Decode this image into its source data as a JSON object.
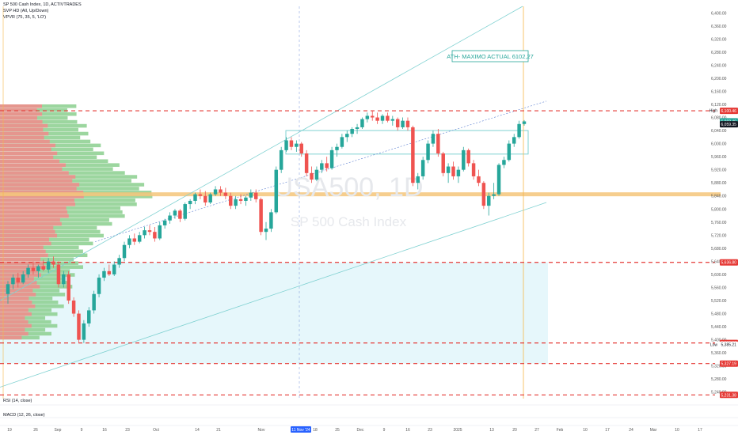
{
  "header": {
    "symbol_line": "SP 500 Cash Index, 1D, ACTIVTRADES",
    "indicator1": "SVP HD (All, Up/Down)",
    "indicator2": "VPVR (75, 35, 5, 'LO')"
  },
  "watermark": {
    "ticker": "USA500, 1D",
    "name": "SP 500 Cash Index"
  },
  "annotation": {
    "text": "ATH- MAXIMO ACTUAL 6102,27"
  },
  "panes": {
    "rsi": "RSI (14, close)",
    "macd": "MACD (12, 26, close)"
  },
  "colors": {
    "up": "#26a69a",
    "down": "#ef5350",
    "dash": "#e53935",
    "channel": "#7fd1d1",
    "poc": "#f5c57a",
    "zone": "#e6f7fb",
    "profile_up": "#8bcf8e",
    "profile_down": "#f28b8b"
  },
  "chart_data": {
    "type": "candlestick",
    "ylim": [
      5220,
      6420
    ],
    "y_ticks": [
      "6,400.00",
      "6,360.00",
      "6,320.00",
      "6,280.00",
      "6,240.00",
      "6,200.00",
      "6,160.00",
      "6,120.00",
      "6,080.00",
      "6,040.00",
      "6,000.00",
      "5,960.00",
      "5,920.00",
      "5,880.00",
      "5,840.00",
      "5,800.00",
      "5,760.00",
      "5,720.00",
      "5,680.00",
      "5,640.00",
      "5,600.00",
      "5,560.00",
      "5,520.00",
      "5,480.00",
      "5,440.00",
      "5,400.00",
      "5,360.00",
      "5,320.00",
      "5,280.00",
      "5,240.00"
    ],
    "x_ticks": [
      "19",
      "26",
      "Sep",
      "9",
      "16",
      "23",
      "Oct",
      "14",
      "21",
      "Nov",
      "11 Nov '24",
      "18",
      "25",
      "Dec",
      "9",
      "16",
      "23",
      "2025",
      "13",
      "20",
      "27",
      "Feb",
      "10",
      "17",
      "24",
      "Mar",
      "10",
      "17"
    ],
    "price_labels": [
      {
        "label": "High",
        "value": "6,102.27"
      },
      {
        "label": "",
        "value": "6,100.46"
      },
      {
        "label": "",
        "value": "6,068.40"
      },
      {
        "label": "",
        "value": "6,059.35"
      },
      {
        "label": "",
        "value": "5,636.80"
      },
      {
        "label": "",
        "value": "5,390.26"
      },
      {
        "label": "Low",
        "value": "5,385.21"
      },
      {
        "label": "",
        "value": "5,327.19"
      },
      {
        "label": "",
        "value": "5,231.38"
      }
    ],
    "resistance_levels": [
      6100.46,
      5636.8,
      5390.26,
      5327.19,
      5231.38
    ],
    "poc_level": 5845,
    "range_box": [
      5968,
      6040
    ],
    "candles": [
      {
        "o": 5540,
        "h": 5580,
        "l": 5510,
        "c": 5570
      },
      {
        "o": 5570,
        "h": 5600,
        "l": 5555,
        "c": 5590
      },
      {
        "o": 5590,
        "h": 5605,
        "l": 5560,
        "c": 5575
      },
      {
        "o": 5575,
        "h": 5610,
        "l": 5570,
        "c": 5600
      },
      {
        "o": 5600,
        "h": 5630,
        "l": 5590,
        "c": 5620
      },
      {
        "o": 5620,
        "h": 5640,
        "l": 5600,
        "c": 5610
      },
      {
        "o": 5610,
        "h": 5630,
        "l": 5590,
        "c": 5625
      },
      {
        "o": 5625,
        "h": 5645,
        "l": 5610,
        "c": 5615
      },
      {
        "o": 5615,
        "h": 5650,
        "l": 5605,
        "c": 5640
      },
      {
        "o": 5640,
        "h": 5655,
        "l": 5620,
        "c": 5630
      },
      {
        "o": 5630,
        "h": 5640,
        "l": 5560,
        "c": 5570
      },
      {
        "o": 5570,
        "h": 5610,
        "l": 5560,
        "c": 5600
      },
      {
        "o": 5600,
        "h": 5610,
        "l": 5510,
        "c": 5520
      },
      {
        "o": 5520,
        "h": 5530,
        "l": 5470,
        "c": 5480
      },
      {
        "o": 5480,
        "h": 5490,
        "l": 5390,
        "c": 5400
      },
      {
        "o": 5400,
        "h": 5460,
        "l": 5390,
        "c": 5450
      },
      {
        "o": 5450,
        "h": 5500,
        "l": 5440,
        "c": 5490
      },
      {
        "o": 5490,
        "h": 5550,
        "l": 5480,
        "c": 5540
      },
      {
        "o": 5540,
        "h": 5600,
        "l": 5530,
        "c": 5590
      },
      {
        "o": 5590,
        "h": 5620,
        "l": 5580,
        "c": 5610
      },
      {
        "o": 5610,
        "h": 5630,
        "l": 5595,
        "c": 5600
      },
      {
        "o": 5600,
        "h": 5640,
        "l": 5595,
        "c": 5630
      },
      {
        "o": 5630,
        "h": 5660,
        "l": 5620,
        "c": 5650
      },
      {
        "o": 5650,
        "h": 5700,
        "l": 5640,
        "c": 5690
      },
      {
        "o": 5690,
        "h": 5720,
        "l": 5680,
        "c": 5710
      },
      {
        "o": 5710,
        "h": 5725,
        "l": 5690,
        "c": 5700
      },
      {
        "o": 5700,
        "h": 5730,
        "l": 5695,
        "c": 5720
      },
      {
        "o": 5720,
        "h": 5745,
        "l": 5710,
        "c": 5735
      },
      {
        "o": 5735,
        "h": 5750,
        "l": 5720,
        "c": 5730
      },
      {
        "o": 5730,
        "h": 5745,
        "l": 5700,
        "c": 5710
      },
      {
        "o": 5710,
        "h": 5760,
        "l": 5705,
        "c": 5750
      },
      {
        "o": 5750,
        "h": 5770,
        "l": 5740,
        "c": 5765
      },
      {
        "o": 5765,
        "h": 5790,
        "l": 5755,
        "c": 5780
      },
      {
        "o": 5780,
        "h": 5800,
        "l": 5770,
        "c": 5795
      },
      {
        "o": 5795,
        "h": 5800,
        "l": 5760,
        "c": 5770
      },
      {
        "o": 5770,
        "h": 5820,
        "l": 5765,
        "c": 5815
      },
      {
        "o": 5815,
        "h": 5830,
        "l": 5800,
        "c": 5825
      },
      {
        "o": 5825,
        "h": 5850,
        "l": 5815,
        "c": 5845
      },
      {
        "o": 5845,
        "h": 5860,
        "l": 5830,
        "c": 5840
      },
      {
        "o": 5840,
        "h": 5855,
        "l": 5810,
        "c": 5820
      },
      {
        "o": 5820,
        "h": 5850,
        "l": 5815,
        "c": 5845
      },
      {
        "o": 5845,
        "h": 5870,
        "l": 5840,
        "c": 5860
      },
      {
        "o": 5860,
        "h": 5870,
        "l": 5840,
        "c": 5850
      },
      {
        "o": 5850,
        "h": 5865,
        "l": 5830,
        "c": 5840
      },
      {
        "o": 5840,
        "h": 5850,
        "l": 5800,
        "c": 5810
      },
      {
        "o": 5810,
        "h": 5840,
        "l": 5800,
        "c": 5830
      },
      {
        "o": 5830,
        "h": 5845,
        "l": 5815,
        "c": 5825
      },
      {
        "o": 5825,
        "h": 5840,
        "l": 5810,
        "c": 5835
      },
      {
        "o": 5835,
        "h": 5860,
        "l": 5825,
        "c": 5850
      },
      {
        "o": 5850,
        "h": 5860,
        "l": 5820,
        "c": 5830
      },
      {
        "o": 5830,
        "h": 5835,
        "l": 5720,
        "c": 5730
      },
      {
        "o": 5730,
        "h": 5760,
        "l": 5705,
        "c": 5740
      },
      {
        "o": 5740,
        "h": 5800,
        "l": 5730,
        "c": 5790
      },
      {
        "o": 5790,
        "h": 5930,
        "l": 5785,
        "c": 5920
      },
      {
        "o": 5920,
        "h": 5990,
        "l": 5910,
        "c": 5980
      },
      {
        "o": 5980,
        "h": 6020,
        "l": 5975,
        "c": 6010
      },
      {
        "o": 6010,
        "h": 6020,
        "l": 5980,
        "c": 5990
      },
      {
        "o": 5990,
        "h": 6010,
        "l": 5975,
        "c": 6000
      },
      {
        "o": 6000,
        "h": 6005,
        "l": 5960,
        "c": 5970
      },
      {
        "o": 5970,
        "h": 5980,
        "l": 5900,
        "c": 5910
      },
      {
        "o": 5910,
        "h": 5930,
        "l": 5880,
        "c": 5890
      },
      {
        "o": 5890,
        "h": 5930,
        "l": 5885,
        "c": 5920
      },
      {
        "o": 5920,
        "h": 5950,
        "l": 5910,
        "c": 5940
      },
      {
        "o": 5940,
        "h": 5960,
        "l": 5915,
        "c": 5925
      },
      {
        "o": 5925,
        "h": 5990,
        "l": 5920,
        "c": 5980
      },
      {
        "o": 5980,
        "h": 6000,
        "l": 5960,
        "c": 5990
      },
      {
        "o": 5990,
        "h": 6030,
        "l": 5985,
        "c": 6020
      },
      {
        "o": 6020,
        "h": 6040,
        "l": 6005,
        "c": 6030
      },
      {
        "o": 6030,
        "h": 6050,
        "l": 6020,
        "c": 6045
      },
      {
        "o": 6045,
        "h": 6060,
        "l": 6030,
        "c": 6050
      },
      {
        "o": 6050,
        "h": 6080,
        "l": 6045,
        "c": 6075
      },
      {
        "o": 6075,
        "h": 6095,
        "l": 6065,
        "c": 6085
      },
      {
        "o": 6085,
        "h": 6100,
        "l": 6070,
        "c": 6080
      },
      {
        "o": 6080,
        "h": 6095,
        "l": 6060,
        "c": 6070
      },
      {
        "o": 6070,
        "h": 6090,
        "l": 6060,
        "c": 6085
      },
      {
        "o": 6085,
        "h": 6095,
        "l": 6065,
        "c": 6070
      },
      {
        "o": 6070,
        "h": 6085,
        "l": 6055,
        "c": 6075
      },
      {
        "o": 6075,
        "h": 6080,
        "l": 6040,
        "c": 6050
      },
      {
        "o": 6050,
        "h": 6080,
        "l": 6045,
        "c": 6070
      },
      {
        "o": 6070,
        "h": 6080,
        "l": 6040,
        "c": 6050
      },
      {
        "o": 6050,
        "h": 6055,
        "l": 5870,
        "c": 5880
      },
      {
        "o": 5880,
        "h": 5910,
        "l": 5860,
        "c": 5900
      },
      {
        "o": 5900,
        "h": 5960,
        "l": 5890,
        "c": 5950
      },
      {
        "o": 5950,
        "h": 6010,
        "l": 5940,
        "c": 6000
      },
      {
        "o": 6000,
        "h": 6040,
        "l": 5990,
        "c": 6030
      },
      {
        "o": 6030,
        "h": 6045,
        "l": 5960,
        "c": 5970
      },
      {
        "o": 5970,
        "h": 5975,
        "l": 5900,
        "c": 5910
      },
      {
        "o": 5910,
        "h": 5940,
        "l": 5880,
        "c": 5930
      },
      {
        "o": 5930,
        "h": 5945,
        "l": 5890,
        "c": 5900
      },
      {
        "o": 5900,
        "h": 5930,
        "l": 5880,
        "c": 5920
      },
      {
        "o": 5920,
        "h": 5990,
        "l": 5915,
        "c": 5980
      },
      {
        "o": 5980,
        "h": 5985,
        "l": 5930,
        "c": 5940
      },
      {
        "o": 5940,
        "h": 5950,
        "l": 5890,
        "c": 5900
      },
      {
        "o": 5900,
        "h": 5920,
        "l": 5870,
        "c": 5880
      },
      {
        "o": 5880,
        "h": 5885,
        "l": 5800,
        "c": 5810
      },
      {
        "o": 5810,
        "h": 5850,
        "l": 5780,
        "c": 5840
      },
      {
        "o": 5840,
        "h": 5880,
        "l": 5830,
        "c": 5845
      },
      {
        "o": 5845,
        "h": 5940,
        "l": 5840,
        "c": 5935
      },
      {
        "o": 5935,
        "h": 5960,
        "l": 5925,
        "c": 5950
      },
      {
        "o": 5950,
        "h": 6010,
        "l": 5945,
        "c": 6000
      },
      {
        "o": 6000,
        "h": 6030,
        "l": 5990,
        "c": 6020
      },
      {
        "o": 6020,
        "h": 6070,
        "l": 6015,
        "c": 6060
      },
      {
        "o": 6060,
        "h": 6072,
        "l": 6055,
        "c": 6068
      }
    ]
  }
}
